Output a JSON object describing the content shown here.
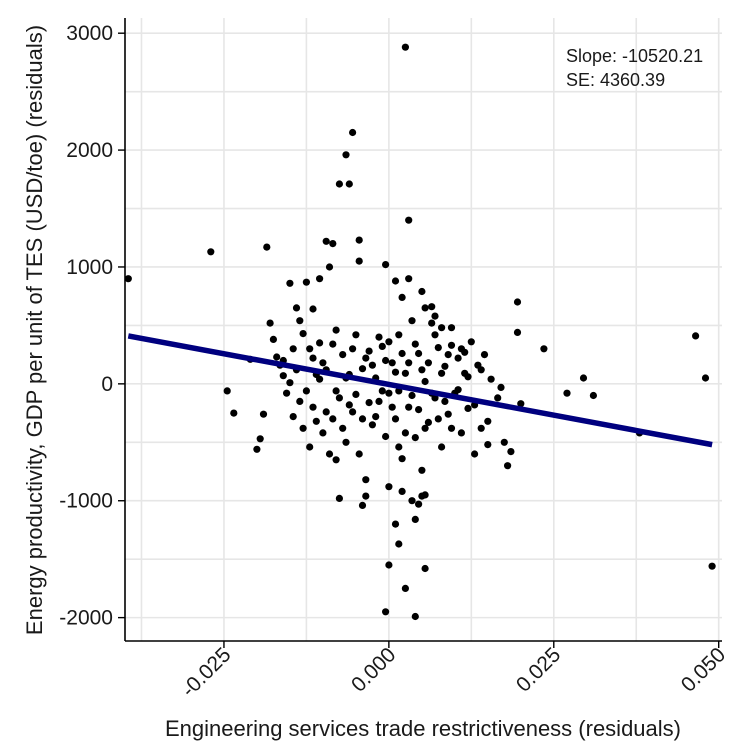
{
  "chart_data": {
    "type": "scatter",
    "title": "",
    "xlabel": "Engineering services trade restrictiveness (residuals)",
    "ylabel": "Energy productivity, GDP per unit of TES (USD/toe) (residuals)",
    "xlim": [
      -0.04,
      0.0505
    ],
    "ylim": [
      -2200,
      3130
    ],
    "x_ticks": [
      -0.025,
      0.0,
      0.025,
      0.05
    ],
    "x_tick_labels": [
      "-0.025",
      "0.000",
      "0.025",
      "0.050"
    ],
    "y_ticks": [
      -2000,
      -1000,
      0,
      1000,
      2000,
      3000
    ],
    "y_tick_labels": [
      "-2000",
      "-1000",
      "0",
      "1000",
      "2000",
      "3000"
    ],
    "grid": true,
    "annotations": [
      "Slope: -10520.21",
      "SE: 4360.39"
    ],
    "colors": {
      "points": "#000000",
      "fit_line": "#00007f",
      "grid": "#e6e6e6",
      "axis": "#000000"
    },
    "fit_line": {
      "x": [
        -0.0395,
        0.049
      ],
      "y": [
        410,
        -520
      ]
    },
    "points": [
      [
        -0.0395,
        900
      ],
      [
        -0.027,
        1130
      ],
      [
        -0.0185,
        1170
      ],
      [
        -0.0245,
        -60
      ],
      [
        -0.0235,
        -250
      ],
      [
        -0.021,
        210
      ],
      [
        -0.019,
        -260
      ],
      [
        -0.0195,
        -470
      ],
      [
        -0.02,
        -560
      ],
      [
        -0.0175,
        380
      ],
      [
        -0.018,
        520
      ],
      [
        -0.015,
        860
      ],
      [
        -0.014,
        650
      ],
      [
        -0.0135,
        540
      ],
      [
        -0.0125,
        870
      ],
      [
        -0.012,
        300
      ],
      [
        -0.0115,
        220
      ],
      [
        -0.0105,
        900
      ],
      [
        -0.0095,
        1220
      ],
      [
        -0.009,
        1000
      ],
      [
        -0.0085,
        1200
      ],
      [
        -0.0075,
        1710
      ],
      [
        -0.006,
        1710
      ],
      [
        -0.0065,
        1960
      ],
      [
        -0.0055,
        2150
      ],
      [
        -0.0045,
        1230
      ],
      [
        -0.0045,
        1050
      ],
      [
        0.003,
        1400
      ],
      [
        0.0025,
        2880
      ],
      [
        -0.016,
        200
      ],
      [
        -0.015,
        10
      ],
      [
        -0.0145,
        -280
      ],
      [
        -0.0135,
        -150
      ],
      [
        -0.013,
        -380
      ],
      [
        -0.012,
        -540
      ],
      [
        -0.0115,
        -200
      ],
      [
        -0.011,
        80
      ],
      [
        -0.0105,
        350
      ],
      [
        -0.01,
        -420
      ],
      [
        -0.0095,
        120
      ],
      [
        -0.009,
        -600
      ],
      [
        -0.0085,
        -300
      ],
      [
        -0.008,
        460
      ],
      [
        -0.0075,
        -120
      ],
      [
        -0.007,
        250
      ],
      [
        -0.0065,
        -500
      ],
      [
        -0.006,
        80
      ],
      [
        -0.0055,
        -240
      ],
      [
        -0.005,
        420
      ],
      [
        -0.0045,
        -600
      ],
      [
        -0.004,
        130
      ],
      [
        -0.0035,
        -820
      ],
      [
        -0.003,
        280
      ],
      [
        -0.0025,
        -350
      ],
      [
        -0.002,
        50
      ],
      [
        -0.0015,
        -150
      ],
      [
        -0.001,
        320
      ],
      [
        -0.0005,
        -450
      ],
      [
        0.0,
        -80
      ],
      [
        0.0005,
        180
      ],
      [
        0.001,
        -300
      ],
      [
        0.0015,
        420
      ],
      [
        0.002,
        -640
      ],
      [
        0.0025,
        90
      ],
      [
        0.003,
        -200
      ],
      [
        0.0035,
        540
      ],
      [
        0.004,
        -460
      ],
      [
        0.0045,
        260
      ],
      [
        0.005,
        -740
      ],
      [
        0.0055,
        20
      ],
      [
        0.006,
        -330
      ],
      [
        0.0065,
        660
      ],
      [
        0.007,
        -120
      ],
      [
        0.0075,
        310
      ],
      [
        0.008,
        -540
      ],
      [
        0.0085,
        150
      ],
      [
        0.009,
        -260
      ],
      [
        0.0095,
        480
      ],
      [
        0.01,
        -80
      ],
      [
        0.0105,
        220
      ],
      [
        0.011,
        -420
      ],
      [
        0.0115,
        90
      ],
      [
        0.012,
        -210
      ],
      [
        0.0125,
        360
      ],
      [
        0.013,
        -600
      ],
      [
        0.0135,
        160
      ],
      [
        0.014,
        -380
      ],
      [
        0.0145,
        250
      ],
      [
        0.015,
        -520
      ],
      [
        0.0155,
        40
      ],
      [
        0.017,
        -30
      ],
      [
        0.0175,
        -500
      ],
      [
        0.018,
        -700
      ],
      [
        0.0185,
        -580
      ],
      [
        0.0195,
        700
      ],
      [
        0.0195,
        440
      ],
      [
        0.02,
        -170
      ],
      [
        0.0235,
        300
      ],
      [
        0.027,
        -80
      ],
      [
        0.0295,
        50
      ],
      [
        0.031,
        -100
      ],
      [
        0.038,
        -420
      ],
      [
        0.0465,
        410
      ],
      [
        0.048,
        50
      ],
      [
        0.049,
        -1560
      ],
      [
        -0.008,
        -650
      ],
      [
        -0.0075,
        -980
      ],
      [
        -0.004,
        -1040
      ],
      [
        -0.0035,
        -960
      ],
      [
        0.0,
        -880
      ],
      [
        0.0015,
        -540
      ],
      [
        0.002,
        -920
      ],
      [
        0.0035,
        -1000
      ],
      [
        0.004,
        -1160
      ],
      [
        0.0045,
        -1030
      ],
      [
        0.005,
        -960
      ],
      [
        0.0055,
        -950
      ],
      [
        0.001,
        -1200
      ],
      [
        0.0,
        -1550
      ],
      [
        -0.0005,
        -1950
      ],
      [
        0.0015,
        -1370
      ],
      [
        0.0025,
        -1750
      ],
      [
        0.004,
        -1990
      ],
      [
        0.0055,
        -1580
      ],
      [
        -0.0005,
        1020
      ],
      [
        0.001,
        880
      ],
      [
        0.002,
        740
      ],
      [
        0.003,
        900
      ],
      [
        0.005,
        790
      ],
      [
        0.0055,
        650
      ],
      [
        0.0065,
        520
      ],
      [
        0.007,
        580
      ],
      [
        0.008,
        480
      ],
      [
        0.0095,
        330
      ],
      [
        0.0115,
        270
      ],
      [
        -0.017,
        230
      ],
      [
        -0.0165,
        160
      ],
      [
        -0.016,
        70
      ],
      [
        -0.0155,
        -80
      ],
      [
        -0.0145,
        300
      ],
      [
        -0.014,
        120
      ],
      [
        -0.013,
        430
      ],
      [
        -0.0125,
        -60
      ],
      [
        -0.0115,
        640
      ],
      [
        -0.011,
        -320
      ],
      [
        -0.0105,
        40
      ],
      [
        -0.01,
        180
      ],
      [
        -0.0095,
        -240
      ],
      [
        -0.0085,
        340
      ],
      [
        -0.008,
        -60
      ],
      [
        -0.007,
        -380
      ],
      [
        -0.0065,
        50
      ],
      [
        -0.006,
        -180
      ],
      [
        -0.0055,
        300
      ],
      [
        -0.005,
        -90
      ],
      [
        -0.004,
        -300
      ],
      [
        -0.0035,
        220
      ],
      [
        -0.003,
        -160
      ],
      [
        -0.0025,
        160
      ],
      [
        -0.002,
        -280
      ],
      [
        -0.0015,
        400
      ],
      [
        -0.001,
        -60
      ],
      [
        -0.0005,
        200
      ],
      [
        0.0,
        360
      ],
      [
        0.0005,
        -200
      ],
      [
        0.001,
        100
      ],
      [
        0.0015,
        -60
      ],
      [
        0.002,
        260
      ],
      [
        0.0025,
        -420
      ],
      [
        0.003,
        180
      ],
      [
        0.0035,
        -100
      ],
      [
        0.004,
        340
      ],
      [
        0.0045,
        -220
      ],
      [
        0.005,
        120
      ],
      [
        0.0055,
        -380
      ],
      [
        0.006,
        180
      ],
      [
        0.0065,
        -80
      ],
      [
        0.007,
        420
      ],
      [
        0.0075,
        -300
      ],
      [
        0.008,
        90
      ],
      [
        0.0085,
        -150
      ],
      [
        0.009,
        250
      ],
      [
        0.0095,
        -380
      ],
      [
        0.0105,
        -50
      ],
      [
        0.011,
        300
      ],
      [
        0.012,
        60
      ],
      [
        0.013,
        -180
      ],
      [
        0.014,
        120
      ],
      [
        0.015,
        -320
      ],
      [
        0.0165,
        -120
      ]
    ]
  }
}
